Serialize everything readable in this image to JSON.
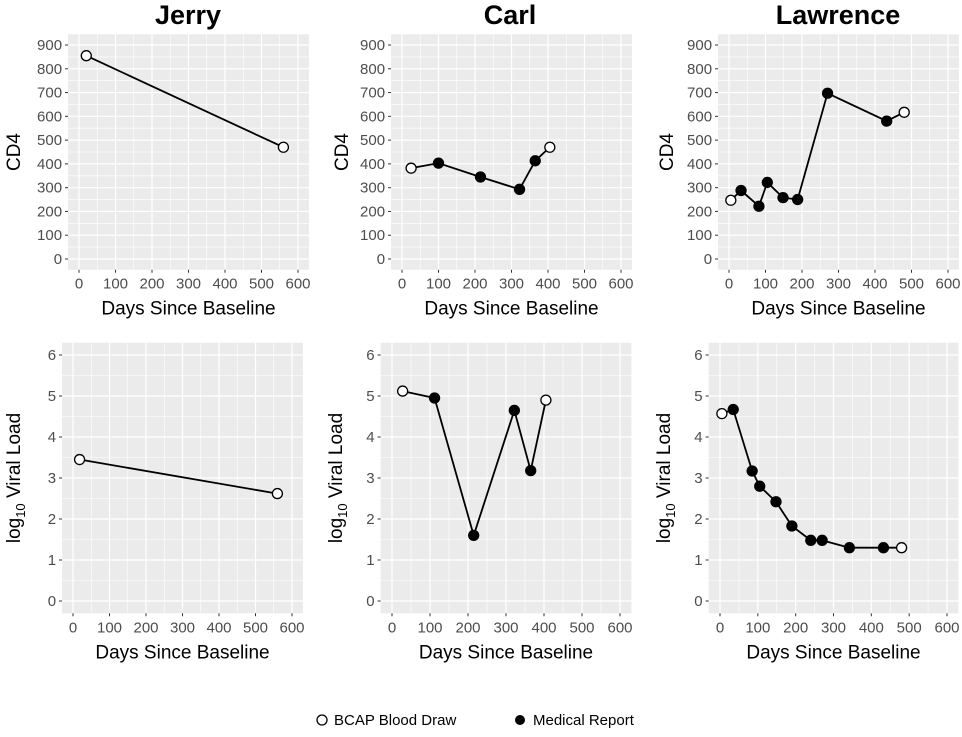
{
  "chart_data": [
    {
      "type": "line",
      "title": "Jerry",
      "ylabel": "CD4",
      "xlabel": "Days Since Baseline",
      "xlim": [
        0,
        600
      ],
      "ylim": [
        0,
        900
      ],
      "xticks": [
        "0",
        "100",
        "200",
        "300",
        "400",
        "500",
        "600"
      ],
      "yticks": [
        "0",
        "100",
        "200",
        "300",
        "400",
        "500",
        "600",
        "700",
        "800",
        "900"
      ],
      "points": [
        {
          "x": 20,
          "y": 855,
          "source": "BCAP Blood Draw"
        },
        {
          "x": 560,
          "y": 470,
          "source": "BCAP Blood Draw"
        }
      ]
    },
    {
      "type": "line",
      "title": "Carl",
      "ylabel": "CD4",
      "xlabel": "Days Since Baseline",
      "xlim": [
        0,
        600
      ],
      "ylim": [
        0,
        900
      ],
      "xticks": [
        "0",
        "100",
        "200",
        "300",
        "400",
        "500",
        "600"
      ],
      "yticks": [
        "0",
        "100",
        "200",
        "300",
        "400",
        "500",
        "600",
        "700",
        "800",
        "900"
      ],
      "points": [
        {
          "x": 25,
          "y": 382,
          "source": "BCAP Blood Draw"
        },
        {
          "x": 100,
          "y": 403,
          "source": "Medical Report"
        },
        {
          "x": 215,
          "y": 345,
          "source": "Medical Report"
        },
        {
          "x": 322,
          "y": 293,
          "source": "Medical Report"
        },
        {
          "x": 365,
          "y": 413,
          "source": "Medical Report"
        },
        {
          "x": 405,
          "y": 470,
          "source": "BCAP Blood Draw"
        }
      ]
    },
    {
      "type": "line",
      "title": "Lawrence",
      "ylabel": "CD4",
      "xlabel": "Days Since Baseline",
      "xlim": [
        0,
        600
      ],
      "ylim": [
        0,
        900
      ],
      "xticks": [
        "0",
        "100",
        "200",
        "300",
        "400",
        "500",
        "600"
      ],
      "yticks": [
        "0",
        "100",
        "200",
        "300",
        "400",
        "500",
        "600",
        "700",
        "800",
        "900"
      ],
      "points": [
        {
          "x": 5,
          "y": 247,
          "source": "BCAP Blood Draw"
        },
        {
          "x": 33,
          "y": 288,
          "source": "Medical Report"
        },
        {
          "x": 82,
          "y": 222,
          "source": "Medical Report"
        },
        {
          "x": 105,
          "y": 322,
          "source": "Medical Report"
        },
        {
          "x": 148,
          "y": 258,
          "source": "Medical Report"
        },
        {
          "x": 188,
          "y": 250,
          "source": "Medical Report"
        },
        {
          "x": 270,
          "y": 697,
          "source": "Medical Report"
        },
        {
          "x": 432,
          "y": 580,
          "source": "Medical Report"
        },
        {
          "x": 480,
          "y": 617,
          "source": "BCAP Blood Draw"
        }
      ]
    },
    {
      "type": "line",
      "title": "",
      "ylabel": "log10 Viral Load",
      "xlabel": "Days Since Baseline",
      "xlim": [
        0,
        600
      ],
      "ylim": [
        0,
        6
      ],
      "xticks": [
        "0",
        "100",
        "200",
        "300",
        "400",
        "500",
        "600"
      ],
      "yticks": [
        "0",
        "1",
        "2",
        "3",
        "4",
        "5",
        "6"
      ],
      "points": [
        {
          "x": 18,
          "y": 3.45,
          "source": "BCAP Blood Draw"
        },
        {
          "x": 560,
          "y": 2.62,
          "source": "BCAP Blood Draw"
        }
      ]
    },
    {
      "type": "line",
      "title": "",
      "ylabel": "log10 Viral Load",
      "xlabel": "Days Since Baseline",
      "xlim": [
        0,
        600
      ],
      "ylim": [
        0,
        6
      ],
      "xticks": [
        "0",
        "100",
        "200",
        "300",
        "400",
        "500",
        "600"
      ],
      "yticks": [
        "0",
        "1",
        "2",
        "3",
        "4",
        "5",
        "6"
      ],
      "points": [
        {
          "x": 28,
          "y": 5.12,
          "source": "BCAP Blood Draw"
        },
        {
          "x": 112,
          "y": 4.95,
          "source": "Medical Report"
        },
        {
          "x": 215,
          "y": 1.6,
          "source": "Medical Report"
        },
        {
          "x": 322,
          "y": 4.65,
          "source": "Medical Report"
        },
        {
          "x": 365,
          "y": 3.18,
          "source": "Medical Report"
        },
        {
          "x": 405,
          "y": 4.9,
          "source": "BCAP Blood Draw"
        }
      ]
    },
    {
      "type": "line",
      "title": "",
      "ylabel": "log10 Viral Load",
      "xlabel": "Days Since Baseline",
      "xlim": [
        0,
        600
      ],
      "ylim": [
        0,
        6
      ],
      "xticks": [
        "0",
        "100",
        "200",
        "300",
        "400",
        "500",
        "600"
      ],
      "yticks": [
        "0",
        "1",
        "2",
        "3",
        "4",
        "5",
        "6"
      ],
      "points": [
        {
          "x": 5,
          "y": 4.57,
          "source": "BCAP Blood Draw"
        },
        {
          "x": 35,
          "y": 4.67,
          "source": "Medical Report"
        },
        {
          "x": 85,
          "y": 3.17,
          "source": "Medical Report"
        },
        {
          "x": 105,
          "y": 2.8,
          "source": "Medical Report"
        },
        {
          "x": 148,
          "y": 2.42,
          "source": "Medical Report"
        },
        {
          "x": 190,
          "y": 1.83,
          "source": "Medical Report"
        },
        {
          "x": 240,
          "y": 1.48,
          "source": "Medical Report"
        },
        {
          "x": 270,
          "y": 1.48,
          "source": "Medical Report"
        },
        {
          "x": 342,
          "y": 1.3,
          "source": "Medical Report"
        },
        {
          "x": 432,
          "y": 1.3,
          "source": "Medical Report"
        },
        {
          "x": 480,
          "y": 1.3,
          "source": "BCAP Blood Draw"
        }
      ]
    }
  ],
  "ylabel_vl": {
    "pre": "log",
    "sub": "10",
    "post": " Viral Load"
  },
  "legend": {
    "position": "bottom",
    "entries": [
      {
        "label": "BCAP Blood Draw",
        "marker": "open-circle"
      },
      {
        "label": "Medical Report",
        "marker": "filled-circle"
      }
    ]
  },
  "colors": {
    "panel_bg": "#ebebeb",
    "grid": "#ffffff",
    "line": "#000000",
    "tick_text": "#4d4d4d"
  }
}
